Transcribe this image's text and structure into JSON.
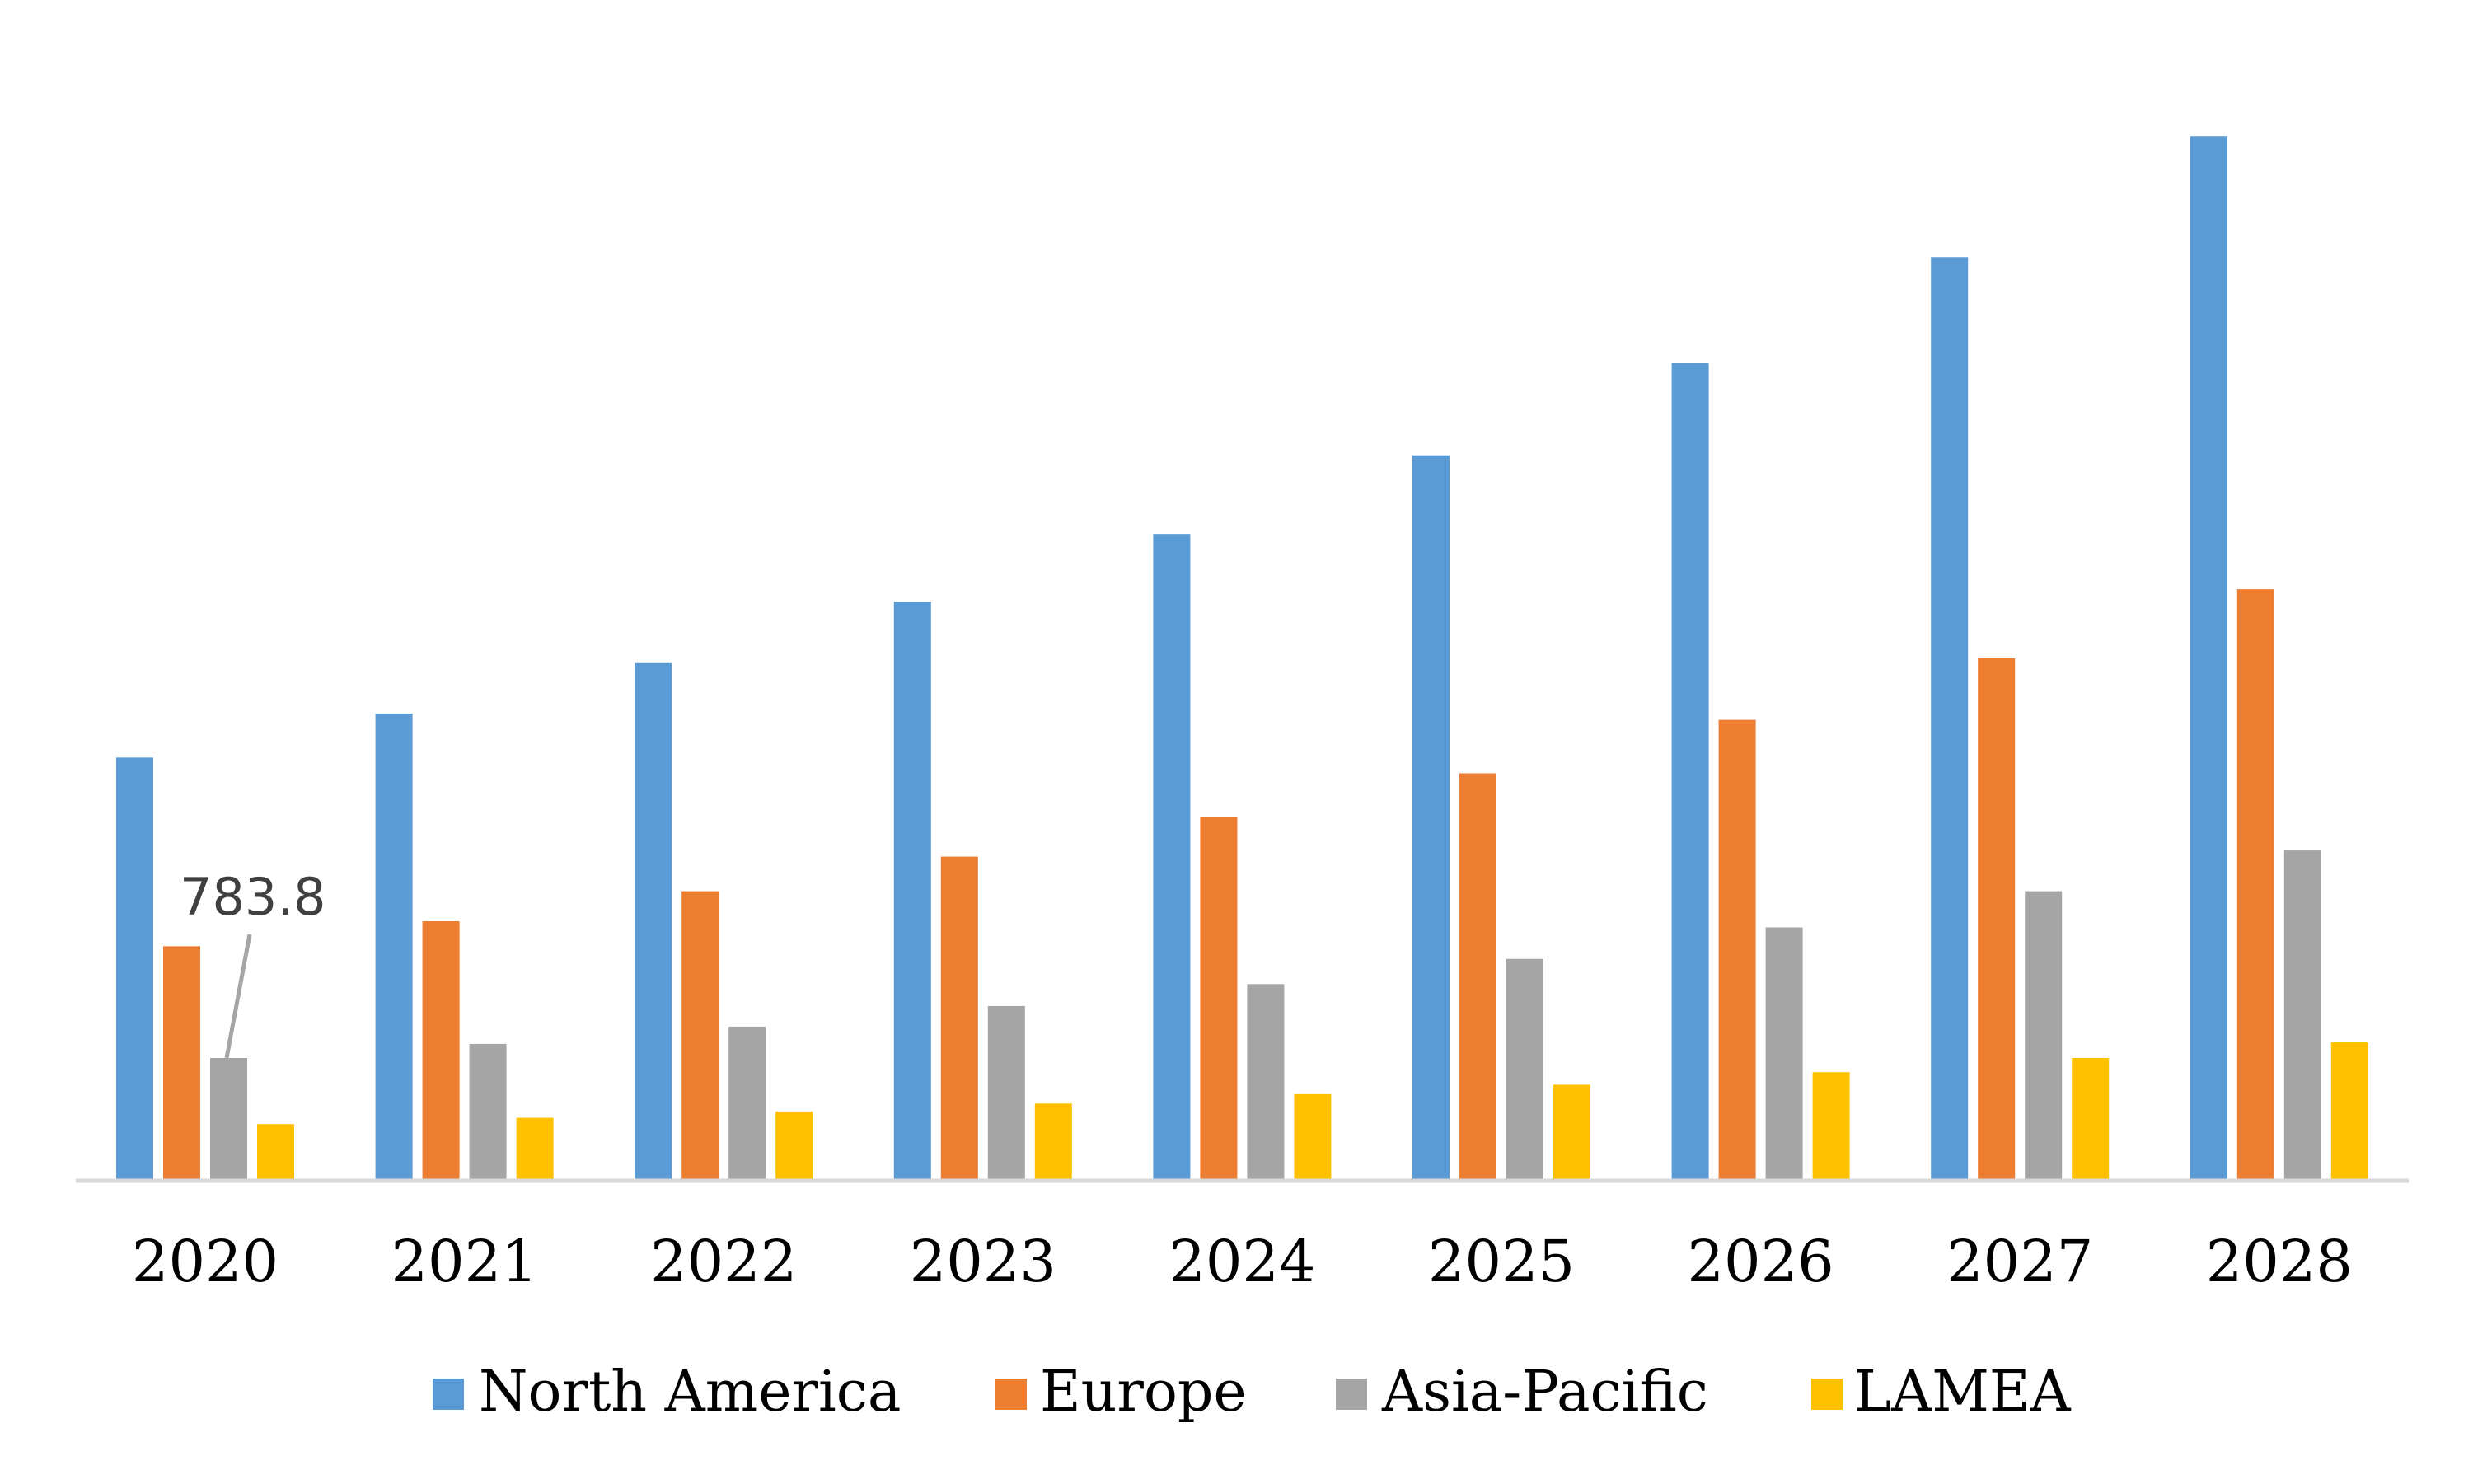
{
  "chart_data": {
    "type": "bar",
    "title": "",
    "xlabel": "",
    "ylabel": "",
    "categories": [
      "2020",
      "2021",
      "2022",
      "2023",
      "2024",
      "2025",
      "2026",
      "2027",
      "2028"
    ],
    "series": [
      {
        "name": "North America",
        "color": "#5B9BD5",
        "values": [
          2728,
          3013,
          3339,
          3736,
          4174,
          4683,
          5283,
          5965,
          6749
        ]
      },
      {
        "name": "Europe",
        "color": "#ED7D31",
        "values": [
          1507,
          1669,
          1863,
          2087,
          2341,
          2626,
          2972,
          3370,
          3817
        ]
      },
      {
        "name": "Asia-Pacific",
        "color": "#A5A5A5",
        "values": [
          783.8,
          875,
          987,
          1120,
          1262,
          1425,
          1629,
          1863,
          2127
        ]
      },
      {
        "name": "LAMEA",
        "color": "#FFC000",
        "values": [
          356,
          397,
          438,
          489,
          550,
          611,
          692,
          784,
          886
        ]
      }
    ],
    "ylim": [
      0,
      6800
    ],
    "grid": false,
    "y_axis_visible": false,
    "legend_position": "bottom",
    "data_labels": [
      {
        "series": "Asia-Pacific",
        "category": "2020",
        "text": "783.8"
      }
    ]
  }
}
